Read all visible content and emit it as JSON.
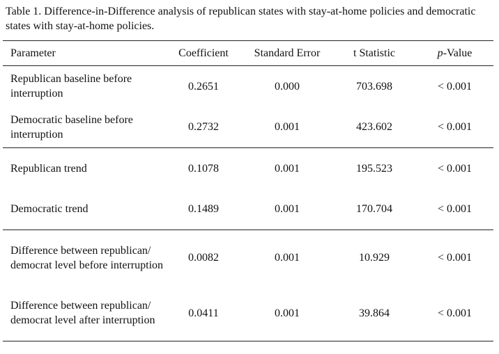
{
  "caption": "Table 1. Difference-in-Difference analysis of republican states with stay-at-home policies and democratic states with stay-at-home policies.",
  "headers": {
    "parameter": "Parameter",
    "coefficient": "Coefficient",
    "standard_error": "Standard Error",
    "t_statistic": "t Statistic",
    "p_value_italic": "p",
    "p_value_rest": "-Value"
  },
  "rows": [
    {
      "parameter": "Republican baseline before interruption",
      "coefficient": "0.2651",
      "standard_error": "0.000",
      "t_statistic": "703.698",
      "p_value": "< 0.001"
    },
    {
      "parameter": "Democratic baseline before interruption",
      "coefficient": "0.2732",
      "standard_error": "0.001",
      "t_statistic": "423.602",
      "p_value": "< 0.001"
    },
    {
      "parameter": "Republican trend",
      "coefficient": "0.1078",
      "standard_error": "0.001",
      "t_statistic": "195.523",
      "p_value": "< 0.001"
    },
    {
      "parameter": "Democratic trend",
      "coefficient": "0.1489",
      "standard_error": "0.001",
      "t_statistic": "170.704",
      "p_value": "< 0.001"
    },
    {
      "parameter": "Difference between republican/ democrat level before interruption",
      "coefficient": "0.0082",
      "standard_error": "0.001",
      "t_statistic": "10.929",
      "p_value": "< 0.001"
    },
    {
      "parameter": "Difference between republican/ democrat level after interruption",
      "coefficient": "0.0411",
      "standard_error": "0.001",
      "t_statistic": "39.864",
      "p_value": "< 0.001"
    }
  ]
}
